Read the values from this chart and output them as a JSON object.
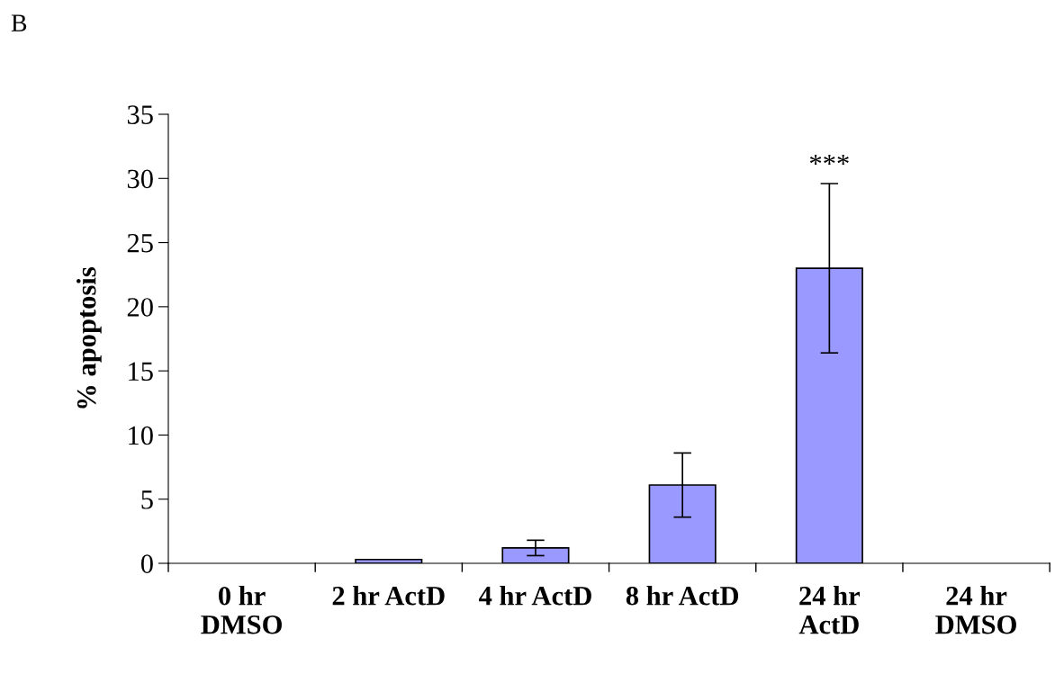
{
  "chart_data": {
    "type": "bar",
    "ylabel": "% apoptosis",
    "categories": [
      "0 hr\nDMSO",
      "2 hr ActD",
      "4 hr ActD",
      "8 hr ActD",
      "24 hr\nActD",
      "24 hr\nDMSO"
    ],
    "values": [
      0,
      0.3,
      1.2,
      6.1,
      23.0,
      0
    ],
    "errors": [
      null,
      null,
      0.6,
      2.5,
      6.6,
      null
    ],
    "color": "#9999ff",
    "ylim": [
      0,
      35
    ],
    "yticks": [
      0,
      5,
      10,
      15,
      20,
      25,
      30,
      35
    ],
    "grid": false,
    "annotations": [
      "B",
      "***"
    ]
  }
}
